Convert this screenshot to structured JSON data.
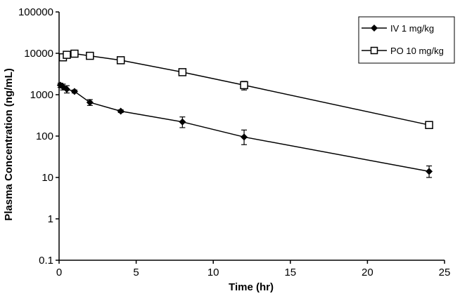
{
  "chart_data": {
    "type": "line",
    "title": "",
    "xlabel": "Time (hr)",
    "ylabel": "Plasma Concentration (ng/mL)",
    "yscale": "log",
    "xlim": [
      0,
      25
    ],
    "ylim": [
      0.1,
      100000
    ],
    "x_ticks": [
      0,
      5,
      10,
      15,
      20,
      25
    ],
    "x_tick_labels": [
      "0",
      "5",
      "10",
      "15",
      "20",
      "25"
    ],
    "y_ticks": [
      0.1,
      1,
      10,
      100,
      1000,
      10000,
      100000
    ],
    "y_tick_labels": [
      "0.1",
      "1",
      "10",
      "100",
      "1000",
      "10000",
      "100000"
    ],
    "grid": false,
    "legend_position": "top-right",
    "series": [
      {
        "name": "IV 1 mg/kg",
        "marker": "filled-diamond",
        "x": [
          0.083,
          0.25,
          0.5,
          1,
          2,
          4,
          8,
          12,
          24
        ],
        "y": [
          1700,
          1550,
          1350,
          1200,
          650,
          400,
          220,
          95,
          14
        ],
        "err_low": [
          1500,
          1300,
          1100,
          1100,
          550,
          370,
          160,
          62,
          10
        ],
        "err_high": [
          1900,
          1800,
          1650,
          1300,
          760,
          430,
          290,
          140,
          19
        ]
      },
      {
        "name": "PO 10 mg/kg",
        "marker": "open-square",
        "x": [
          0.25,
          0.5,
          1,
          2,
          4,
          8,
          12,
          24
        ],
        "y": [
          8000,
          9200,
          9800,
          8700,
          6800,
          3500,
          1700,
          185
        ],
        "err_low": [
          7200,
          8500,
          9200,
          8000,
          6300,
          3200,
          1300,
          170
        ],
        "err_high": [
          8800,
          10000,
          10500,
          9400,
          7300,
          3800,
          2100,
          200
        ]
      }
    ]
  }
}
